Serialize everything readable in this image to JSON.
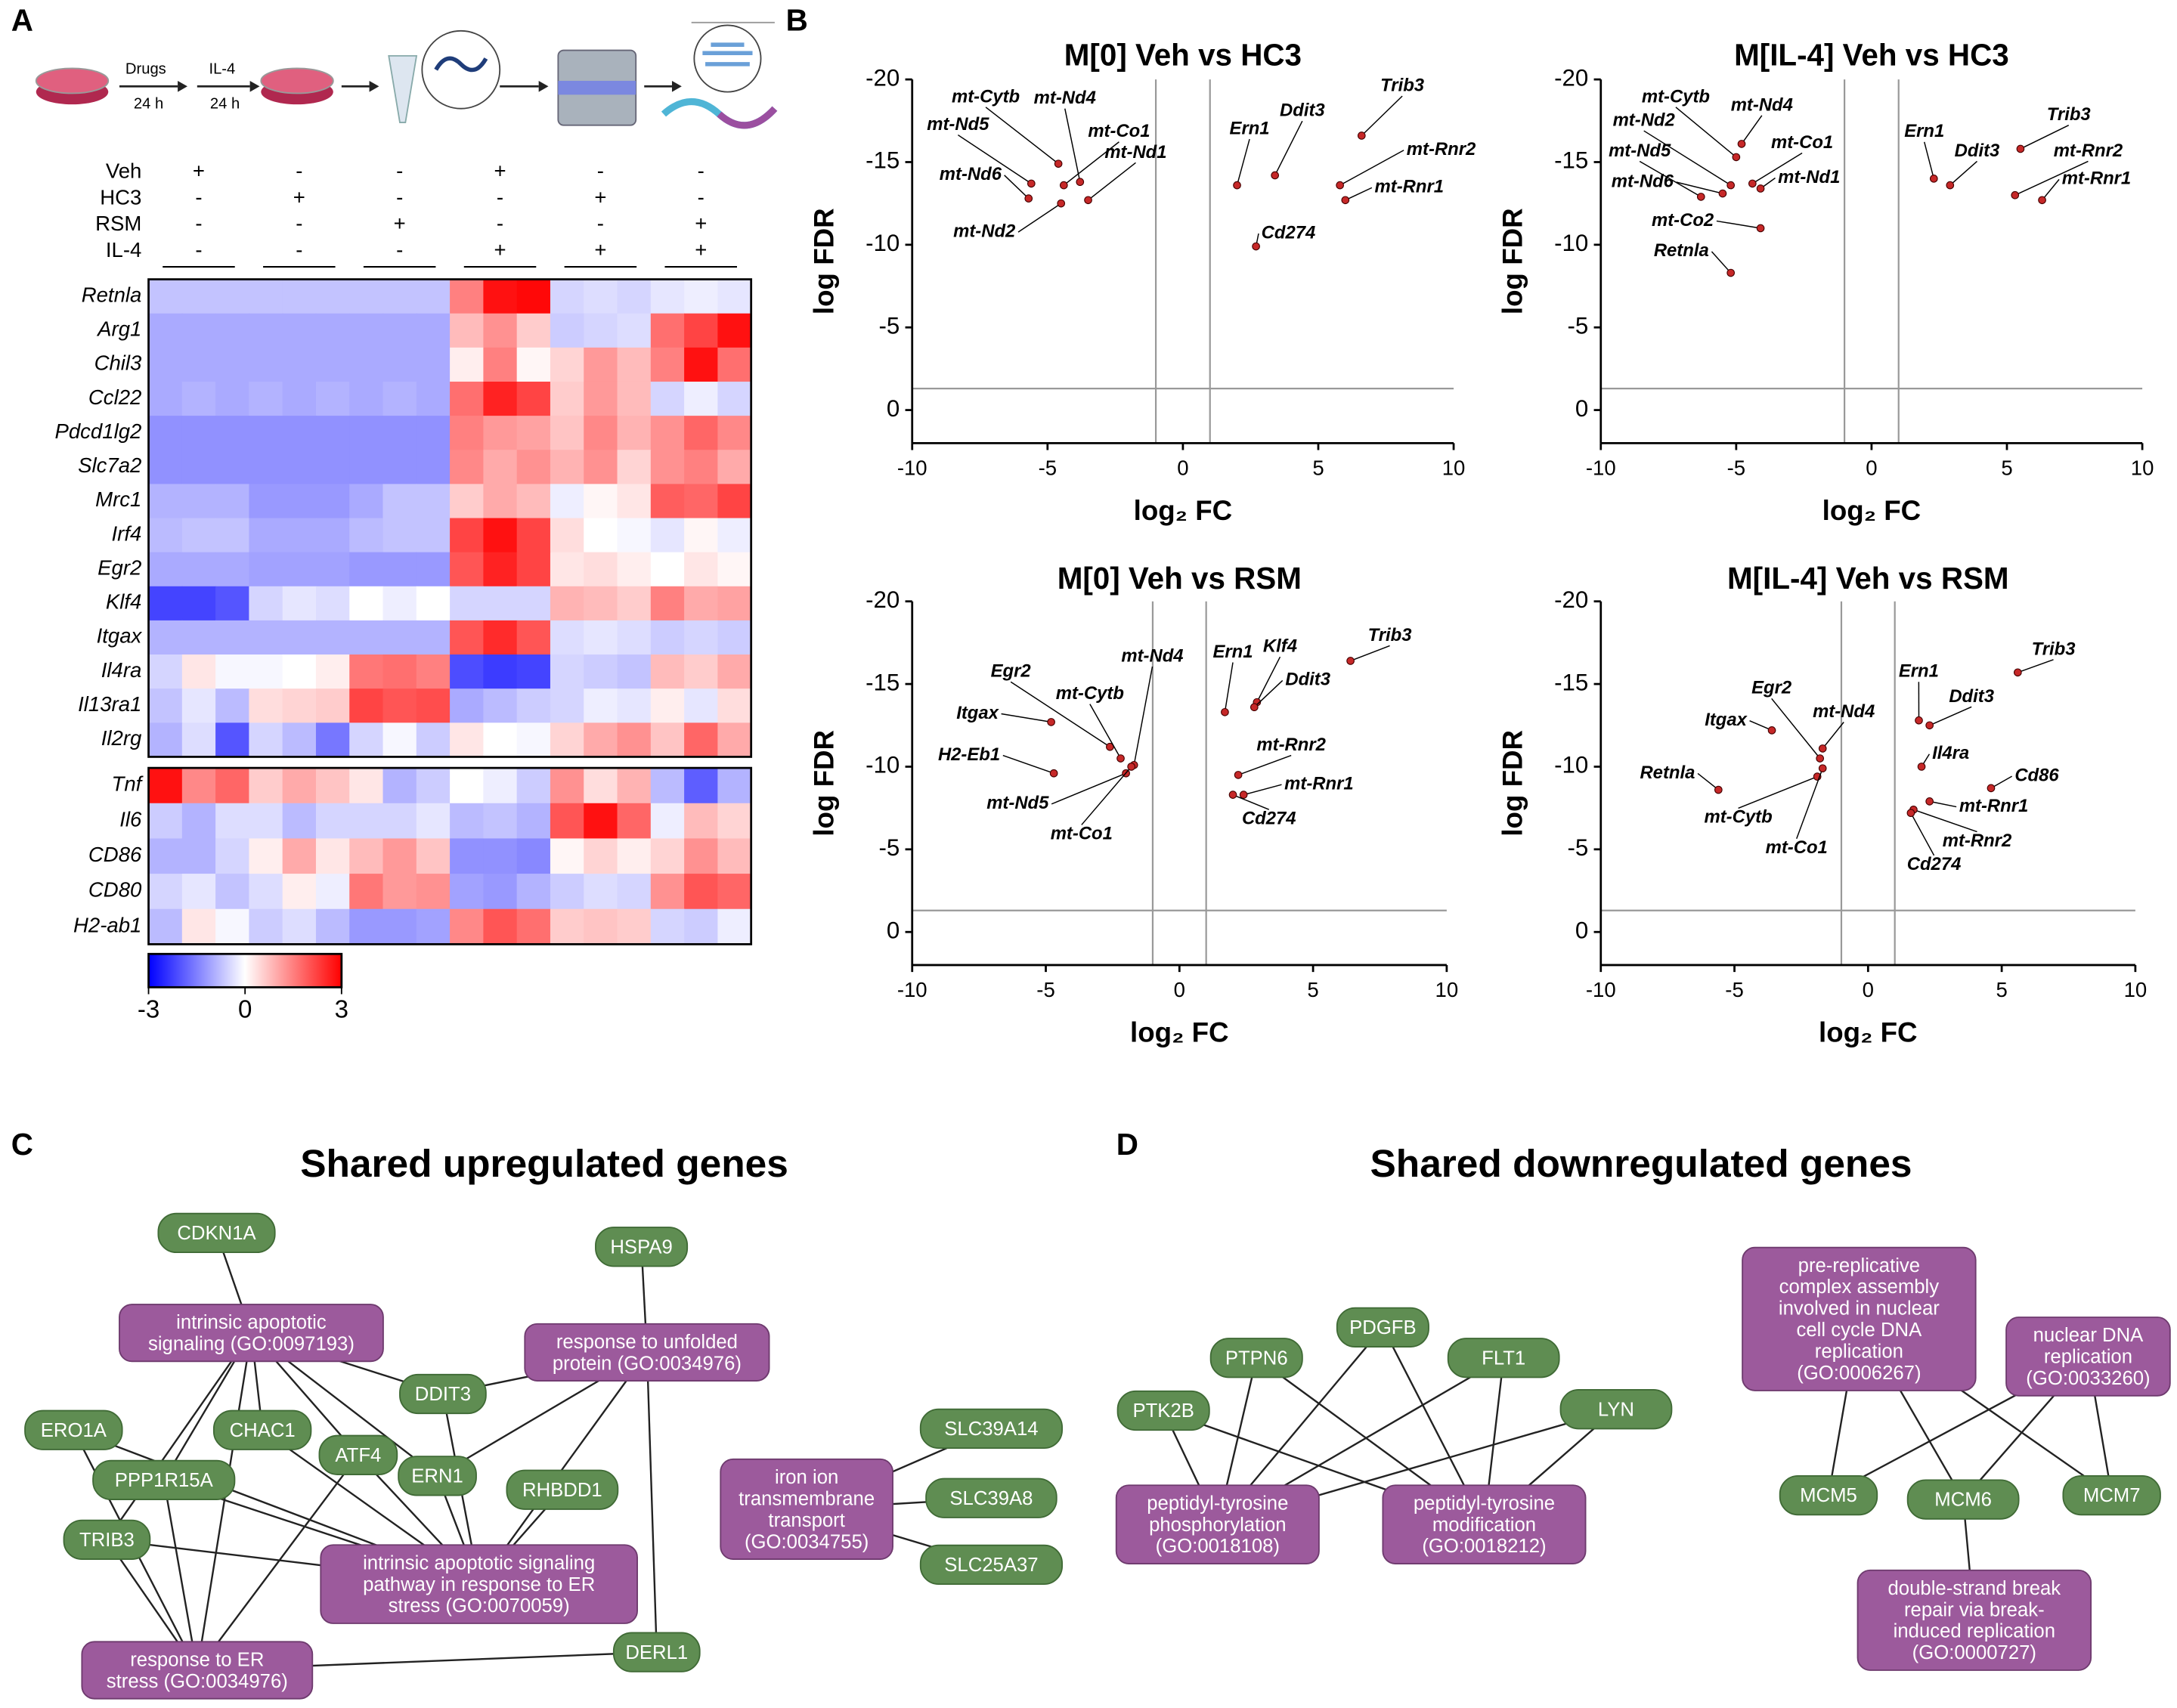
{
  "panels": {
    "A": "A",
    "B": "B",
    "C": "C",
    "D": "D"
  },
  "schematic": {
    "step1": "Drugs",
    "time1": "24 h",
    "step2": "IL-4",
    "time2": "24 h"
  },
  "conditions": [
    {
      "name": "Veh",
      "marks": [
        "+",
        "-",
        "-",
        "+",
        "-",
        "-"
      ]
    },
    {
      "name": "HC3",
      "marks": [
        "-",
        "+",
        "-",
        "-",
        "+",
        "-"
      ]
    },
    {
      "name": "RSM",
      "marks": [
        "-",
        "-",
        "+",
        "-",
        "-",
        "+"
      ]
    },
    {
      "name": "IL-4",
      "marks": [
        "-",
        "-",
        "-",
        "+",
        "+",
        "+"
      ]
    }
  ],
  "heatmap": {
    "blocks": [
      {
        "genes": [
          "Retnla",
          "Arg1",
          "Chil3",
          "Ccl22",
          "Pdcd1lg2",
          "Slc7a2",
          "Mrc1",
          "Irf4",
          "Egr2",
          "Klf4",
          "Itgax",
          "Il4ra",
          "Il13ra1",
          "Il2rg"
        ],
        "values": [
          [
            -0.7,
            -0.7,
            -0.7,
            -0.7,
            -0.7,
            -0.7,
            -0.7,
            -0.7,
            -0.7,
            1.5,
            2.8,
            2.9,
            -0.5,
            -0.4,
            -0.5,
            -0.3,
            -0.2,
            -0.3
          ],
          [
            -1,
            -1,
            -1,
            -1,
            -1,
            -1,
            -1,
            -1,
            -1,
            0.8,
            1.3,
            0.6,
            -0.6,
            -0.5,
            -0.4,
            1.7,
            2.2,
            2.8
          ],
          [
            -1,
            -1,
            -1,
            -1,
            -1,
            -1,
            -1,
            -1,
            -1,
            0.2,
            1.5,
            0.1,
            0.5,
            1.2,
            0.8,
            1.5,
            2.8,
            1.7
          ],
          [
            -1,
            -0.9,
            -1,
            -0.9,
            -1,
            -0.9,
            -1,
            -0.9,
            -1,
            1.7,
            2.6,
            2.2,
            0.6,
            1.2,
            0.8,
            -0.5,
            -0.2,
            -0.5
          ],
          [
            -1.3,
            -1.3,
            -1.3,
            -1.3,
            -1.3,
            -1.3,
            -1.3,
            -1.3,
            -1.3,
            1.5,
            1.2,
            1.1,
            0.7,
            1.4,
            0.9,
            1.3,
            1.8,
            1.4
          ],
          [
            -1.3,
            -1.3,
            -1.3,
            -1.3,
            -1.3,
            -1.3,
            -1.3,
            -1.3,
            -1.3,
            1.4,
            1,
            1.3,
            0.9,
            1.3,
            0.5,
            1.3,
            1.5,
            1
          ],
          [
            -0.9,
            -0.9,
            -0.9,
            -1.2,
            -1.2,
            -1.2,
            -1,
            -0.7,
            -0.7,
            0.6,
            1,
            0.8,
            -0.2,
            0.1,
            0.3,
            1.9,
            1.8,
            2.2
          ],
          [
            -0.8,
            -0.7,
            -0.7,
            -1,
            -1,
            -1,
            -0.8,
            -0.7,
            -0.7,
            2.2,
            2.8,
            2.2,
            0.4,
            0,
            -0.1,
            -0.3,
            0.1,
            -0.2
          ],
          [
            -1,
            -1,
            -1,
            -1.1,
            -1.1,
            -1.1,
            -1.2,
            -1.2,
            -1.2,
            2,
            2.6,
            2.2,
            0.3,
            0.4,
            0.2,
            0,
            0.3,
            0.1
          ],
          [
            -2.2,
            -2.2,
            -2,
            -0.5,
            -0.3,
            -0.4,
            0,
            -0.2,
            0,
            -0.5,
            -0.5,
            -0.5,
            0.9,
            0.8,
            0.6,
            1.5,
            1,
            1.1
          ],
          [
            -0.9,
            -0.9,
            -0.9,
            -0.9,
            -0.9,
            -0.9,
            -0.9,
            -0.9,
            -0.9,
            2,
            2.5,
            2,
            -0.4,
            -0.3,
            -0.4,
            -0.6,
            -0.5,
            -0.6
          ],
          [
            -0.5,
            0.3,
            -0.1,
            -0.1,
            0,
            0.2,
            1.6,
            1.7,
            1.5,
            -2.1,
            -2.3,
            -2.2,
            -0.5,
            -0.6,
            -0.7,
            0.8,
            0.6,
            1
          ],
          [
            -0.7,
            -0.3,
            -0.8,
            0.4,
            0.5,
            0.6,
            2.2,
            2,
            2.1,
            -1,
            -0.8,
            -0.6,
            -0.5,
            -0.2,
            -0.3,
            0.2,
            -0.3,
            0.4
          ],
          [
            -0.9,
            -0.4,
            -2,
            -0.5,
            -0.8,
            -1.6,
            -0.5,
            -0.1,
            -0.6,
            0.3,
            0,
            -0.1,
            0.5,
            1,
            1.3,
            0.7,
            1.8,
            1
          ]
        ]
      },
      {
        "genes": [
          "Tnf",
          "Il6",
          "CD86",
          "CD80",
          "H2-ab1"
        ],
        "values": [
          [
            2.8,
            1.4,
            1.8,
            0.6,
            1,
            0.7,
            0.3,
            -0.9,
            -0.6,
            0,
            -0.2,
            -0.6,
            1.3,
            0.4,
            0.9,
            -0.8,
            -1.9,
            -0.9
          ],
          [
            -0.6,
            -0.9,
            -0.4,
            -0.4,
            -0.8,
            -0.5,
            -0.5,
            -0.5,
            -0.3,
            -0.8,
            -0.7,
            -0.9,
            2,
            2.8,
            1.8,
            -0.2,
            0.8,
            0.5
          ],
          [
            -0.9,
            -0.9,
            -0.5,
            0.2,
            1,
            0.3,
            0.8,
            1.2,
            0.7,
            -1.3,
            -1.3,
            -1.4,
            0.1,
            0.5,
            0.2,
            0.5,
            1.3,
            0.8
          ],
          [
            -0.5,
            -0.3,
            -0.7,
            -0.4,
            0.2,
            -0.2,
            1.6,
            1.2,
            1.3,
            -1.1,
            -1.2,
            -0.9,
            -0.6,
            -0.4,
            -0.5,
            1.3,
            2,
            1.8
          ],
          [
            -0.8,
            0.3,
            -0.1,
            -0.6,
            -0.4,
            -0.8,
            -1.2,
            -1.2,
            -1.1,
            1.4,
            2,
            1.7,
            0.6,
            0.7,
            0.6,
            -0.5,
            -0.6,
            -0.2
          ]
        ]
      }
    ],
    "colorbar": {
      "min": -3,
      "max": 3,
      "ticks": [
        -3,
        0,
        3
      ],
      "low_color": "#0000ff",
      "mid_color": "#ffffff",
      "high_color": "#ff0000"
    }
  },
  "chart_data": [
    {
      "type": "scatter",
      "title": "M[0] Veh vs HC3",
      "xlabel": "log₂ FC",
      "ylabel": "log FDR",
      "xlim": [
        -10,
        10
      ],
      "ylim": [
        2,
        -20
      ],
      "xticks": [
        -10,
        -5,
        0,
        5,
        10
      ],
      "yticks": [
        -20,
        -15,
        -10,
        -5,
        0
      ],
      "thresholds": {
        "x": [
          -1,
          1
        ],
        "y": -1.3
      },
      "color": "#c62828",
      "labels": [
        "Trib3",
        "mt-Rnr2",
        "mt-Rnr1",
        "Ddit3",
        "Ern1",
        "Cd274",
        "mt-Cytb",
        "mt-Nd4",
        "mt-Nd5",
        "mt-Nd6",
        "mt-Co1",
        "mt-Nd1",
        "mt-Nd2"
      ],
      "x": [
        6.6,
        5.8,
        6.0,
        3.4,
        2.0,
        2.7,
        -4.6,
        -3.8,
        -5.6,
        -5.7,
        -4.4,
        -3.5,
        -4.5
      ],
      "y": [
        -16.6,
        -13.6,
        -12.7,
        -14.2,
        -13.6,
        -9.9,
        -14.9,
        -13.8,
        -13.7,
        -12.8,
        -13.6,
        -12.7,
        -12.5
      ]
    },
    {
      "type": "scatter",
      "title": "M[IL-4] Veh vs HC3",
      "xlabel": "log₂ FC",
      "ylabel": "log FDR",
      "xlim": [
        -10,
        10
      ],
      "ylim": [
        2,
        -20
      ],
      "xticks": [
        -10,
        -5,
        0,
        5,
        10
      ],
      "yticks": [
        -20,
        -15,
        -10,
        -5,
        0
      ],
      "thresholds": {
        "x": [
          -1,
          1
        ],
        "y": -1.3
      },
      "color": "#c62828",
      "labels": [
        "Trib3",
        "mt-Rnr2",
        "mt-Rnr1",
        "Ern1",
        "Ddit3",
        "mt-Cytb",
        "mt-Nd4",
        "mt-Nd2",
        "mt-Nd5",
        "mt-Nd6",
        "mt-Co1",
        "mt-Nd1",
        "mt-Co2",
        "Retnla"
      ],
      "x": [
        5.5,
        5.3,
        6.3,
        2.3,
        2.9,
        -5.0,
        -4.8,
        -5.2,
        -6.3,
        -5.5,
        -4.4,
        -4.1,
        -4.1,
        -5.2
      ],
      "y": [
        -15.8,
        -13.0,
        -12.7,
        -14.0,
        -13.6,
        -15.3,
        -16.1,
        -13.6,
        -12.9,
        -13.1,
        -13.7,
        -13.4,
        -11.0,
        -8.3
      ]
    },
    {
      "type": "scatter",
      "title": "M[0] Veh vs RSM",
      "xlabel": "log₂ FC",
      "ylabel": "log FDR",
      "xlim": [
        -10,
        10
      ],
      "ylim": [
        2,
        -20
      ],
      "xticks": [
        -10,
        -5,
        0,
        5,
        10
      ],
      "yticks": [
        -20,
        -15,
        -10,
        -5,
        0
      ],
      "thresholds": {
        "x": [
          -1,
          1
        ],
        "y": -1.3
      },
      "color": "#c62828",
      "labels": [
        "Trib3",
        "Klf4",
        "Ddit3",
        "Ern1",
        "mt-Rnr2",
        "mt-Rnr1",
        "Cd274",
        "Egr2",
        "Itgax",
        "H2-Eb1",
        "mt-Cytb",
        "mt-Nd4",
        "mt-Nd5",
        "mt-Co1"
      ],
      "x": [
        6.4,
        2.9,
        2.8,
        1.7,
        2.2,
        2.4,
        2.0,
        -2.6,
        -4.8,
        -4.7,
        -2.2,
        -1.7,
        -2.0,
        -1.8
      ],
      "y": [
        -16.4,
        -13.9,
        -13.6,
        -13.3,
        -9.5,
        -8.3,
        -8.3,
        -11.2,
        -12.7,
        -9.6,
        -10.5,
        -10.1,
        -9.6,
        -10.0
      ]
    },
    {
      "type": "scatter",
      "title": "M[IL-4] Veh vs RSM",
      "xlabel": "log₂ FC",
      "ylabel": "log FDR",
      "xlim": [
        -10,
        10
      ],
      "ylim": [
        2,
        -20
      ],
      "xticks": [
        -10,
        -5,
        0,
        5,
        10
      ],
      "yticks": [
        -20,
        -15,
        -10,
        -5,
        0
      ],
      "thresholds": {
        "x": [
          -1,
          1
        ],
        "y": -1.3
      },
      "color": "#c62828",
      "labels": [
        "Trib3",
        "Ern1",
        "Ddit3",
        "Il4ra",
        "Cd86",
        "mt-Rnr1",
        "mt-Rnr2",
        "Cd274",
        "Egr2",
        "mt-Nd4",
        "Itgax",
        "Retnla",
        "mt-Cytb",
        "mt-Co1"
      ],
      "x": [
        5.6,
        1.9,
        2.3,
        2.0,
        4.6,
        2.3,
        1.7,
        1.6,
        -1.8,
        -1.7,
        -3.6,
        -5.6,
        -1.9,
        -1.7
      ],
      "y": [
        -15.7,
        -12.8,
        -12.5,
        -10.0,
        -8.7,
        -7.9,
        -7.4,
        -7.2,
        -10.5,
        -11.1,
        -12.2,
        -8.6,
        -9.4,
        -9.9
      ]
    }
  ],
  "networks": [
    {
      "title": "Shared upregulated genes",
      "nodes": [
        {
          "kind": "gene",
          "lines": [
            "CDKN1A"
          ]
        },
        {
          "kind": "gene",
          "lines": [
            "HSPA9"
          ]
        },
        {
          "kind": "term",
          "lines": [
            "intrinsic apoptotic",
            "signaling (GO:0097193)"
          ]
        },
        {
          "kind": "term",
          "lines": [
            "response to unfolded",
            "protein (GO:0034976)"
          ]
        },
        {
          "kind": "gene",
          "lines": [
            "DDIT3"
          ]
        },
        {
          "kind": "gene",
          "lines": [
            "ERO1A"
          ]
        },
        {
          "kind": "gene",
          "lines": [
            "CHAC1"
          ]
        },
        {
          "kind": "gene",
          "lines": [
            "ATF4"
          ]
        },
        {
          "kind": "gene",
          "lines": [
            "ERN1"
          ]
        },
        {
          "kind": "gene",
          "lines": [
            "PPP1R15A"
          ]
        },
        {
          "kind": "gene",
          "lines": [
            "RHBDD1"
          ]
        },
        {
          "kind": "gene",
          "lines": [
            "TRIB3"
          ]
        },
        {
          "kind": "term",
          "lines": [
            "iron ion",
            "transmembrane",
            "transport",
            "(GO:0034755)"
          ]
        },
        {
          "kind": "gene",
          "lines": [
            "SLC39A14"
          ]
        },
        {
          "kind": "gene",
          "lines": [
            "SLC39A8"
          ]
        },
        {
          "kind": "gene",
          "lines": [
            "SLC25A37"
          ]
        },
        {
          "kind": "term",
          "lines": [
            "intrinsic apoptotic signaling",
            "pathway in response to ER",
            "stress (GO:0070059)"
          ]
        },
        {
          "kind": "term",
          "lines": [
            "response to ER",
            "stress (GO:0034976)"
          ]
        },
        {
          "kind": "gene",
          "lines": [
            "DERL1"
          ]
        }
      ],
      "edges": [
        [
          0,
          2
        ],
        [
          1,
          3
        ],
        [
          2,
          4
        ],
        [
          2,
          6
        ],
        [
          2,
          7
        ],
        [
          2,
          8
        ],
        [
          2,
          9
        ],
        [
          2,
          11
        ],
        [
          2,
          17
        ],
        [
          3,
          4
        ],
        [
          3,
          8
        ],
        [
          3,
          16
        ],
        [
          3,
          18
        ],
        [
          16,
          4
        ],
        [
          16,
          5
        ],
        [
          16,
          6
        ],
        [
          16,
          7
        ],
        [
          16,
          8
        ],
        [
          16,
          9
        ],
        [
          16,
          10
        ],
        [
          16,
          11
        ],
        [
          17,
          5
        ],
        [
          17,
          7
        ],
        [
          17,
          9
        ],
        [
          17,
          11
        ],
        [
          17,
          18
        ],
        [
          12,
          13
        ],
        [
          12,
          14
        ],
        [
          12,
          15
        ]
      ]
    },
    {
      "title": "Shared downregulated genes",
      "nodes": [
        {
          "kind": "gene",
          "lines": [
            "PTPN6"
          ]
        },
        {
          "kind": "gene",
          "lines": [
            "PDGFB"
          ]
        },
        {
          "kind": "gene",
          "lines": [
            "FLT1"
          ]
        },
        {
          "kind": "gene",
          "lines": [
            "PTK2B"
          ]
        },
        {
          "kind": "gene",
          "lines": [
            "LYN"
          ]
        },
        {
          "kind": "term",
          "lines": [
            "peptidyl-tyrosine",
            "phosphorylation",
            "(GO:0018108)"
          ]
        },
        {
          "kind": "term",
          "lines": [
            "peptidyl-tyrosine",
            "modification",
            "(GO:0018212)"
          ]
        },
        {
          "kind": "term",
          "lines": [
            "pre-replicative",
            "complex assembly",
            "involved in nuclear",
            "cell cycle DNA",
            "replication",
            "(GO:0006267)"
          ]
        },
        {
          "kind": "term",
          "lines": [
            "nuclear DNA",
            "replication",
            "(GO:0033260)"
          ]
        },
        {
          "kind": "gene",
          "lines": [
            "MCM5"
          ]
        },
        {
          "kind": "gene",
          "lines": [
            "MCM6"
          ]
        },
        {
          "kind": "gene",
          "lines": [
            "MCM7"
          ]
        },
        {
          "kind": "term",
          "lines": [
            "double-strand break",
            "repair via break-",
            "induced replication",
            "(GO:0000727)"
          ]
        }
      ],
      "edges": [
        [
          5,
          0
        ],
        [
          5,
          1
        ],
        [
          5,
          2
        ],
        [
          5,
          3
        ],
        [
          5,
          4
        ],
        [
          6,
          0
        ],
        [
          6,
          1
        ],
        [
          6,
          2
        ],
        [
          6,
          3
        ],
        [
          6,
          4
        ],
        [
          7,
          9
        ],
        [
          7,
          10
        ],
        [
          7,
          11
        ],
        [
          8,
          9
        ],
        [
          8,
          10
        ],
        [
          8,
          11
        ],
        [
          12,
          10
        ]
      ]
    }
  ]
}
